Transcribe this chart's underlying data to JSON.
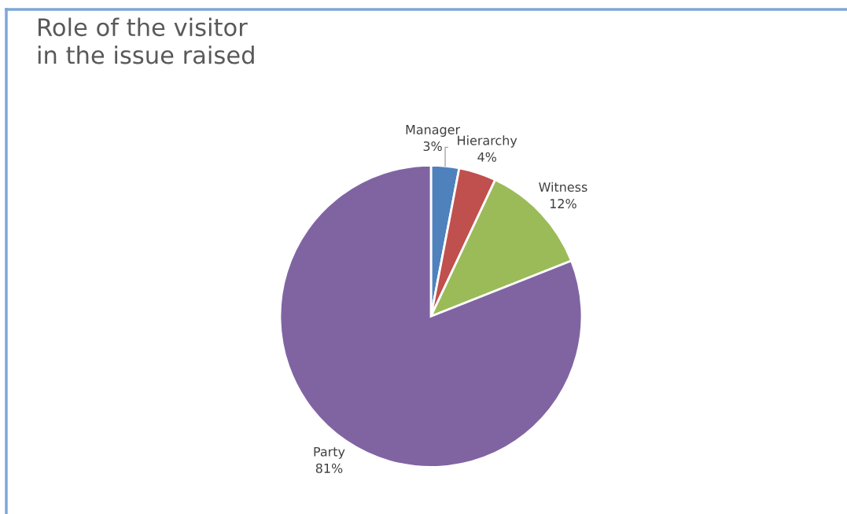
{
  "chart_data": {
    "type": "pie",
    "title": "Role of the visitor\nin the issue raised",
    "categories": [
      "Manager",
      "Hierarchy",
      "Witness",
      "Party"
    ],
    "values": [
      3,
      4,
      12,
      81
    ],
    "value_labels": [
      "3%",
      "4%",
      "12%",
      "81%"
    ],
    "colors": [
      "#4f81bd",
      "#c0504d",
      "#9bbb59",
      "#8064a2"
    ]
  }
}
